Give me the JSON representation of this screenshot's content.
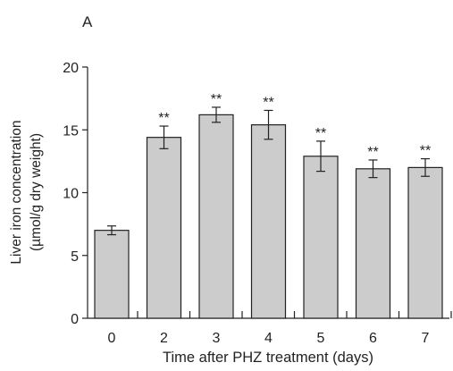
{
  "chart_data": {
    "type": "bar",
    "panel_label": "A",
    "title": "",
    "xlabel": "Time after PHZ treatment (days)",
    "ylabel_lines": [
      "Liver iron concentration",
      "(µmol/g dry weight)"
    ],
    "categories": [
      "0",
      "2",
      "3",
      "4",
      "5",
      "6",
      "7"
    ],
    "values": [
      7.0,
      14.4,
      16.2,
      15.4,
      12.9,
      11.9,
      12.0
    ],
    "errors": [
      0.35,
      0.9,
      0.6,
      1.15,
      1.2,
      0.7,
      0.7
    ],
    "significance": [
      "",
      "**",
      "**",
      "**",
      "**",
      "**",
      "**"
    ],
    "ylim": [
      0,
      20
    ],
    "yticks": [
      0,
      5,
      10,
      15,
      20
    ],
    "grid": false,
    "legend": "none",
    "bar_color": "#cccccc",
    "edge_color": "#222222"
  }
}
